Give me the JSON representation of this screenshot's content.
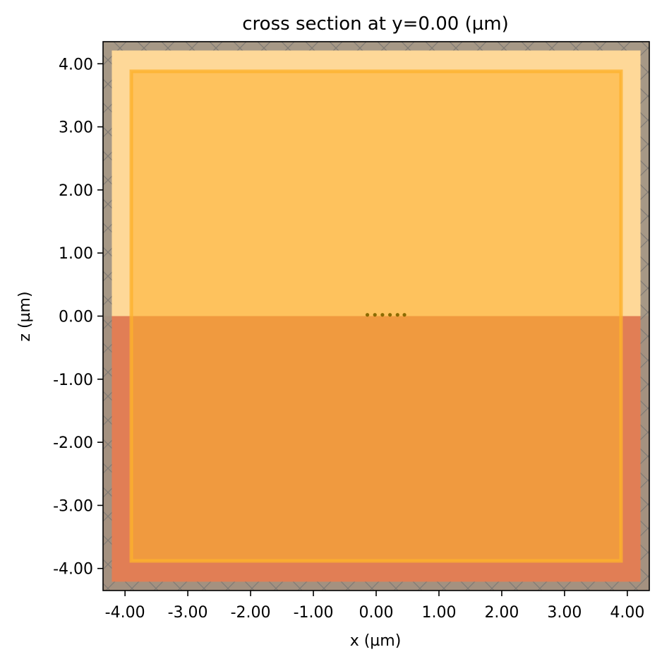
{
  "chart_data": {
    "type": "cross-section",
    "title": "cross section at y=0.00 (µm)",
    "xlabel": "x (µm)",
    "ylabel": "z (µm)",
    "xlim": [
      -4.35,
      4.35
    ],
    "ylim": [
      -4.35,
      4.35
    ],
    "x_ticks": [
      {
        "value": -4,
        "label": "-4.00"
      },
      {
        "value": -3,
        "label": "-3.00"
      },
      {
        "value": -2,
        "label": "-2.00"
      },
      {
        "value": -1,
        "label": "-1.00"
      },
      {
        "value": 0,
        "label": "0.00"
      },
      {
        "value": 1,
        "label": "1.00"
      },
      {
        "value": 2,
        "label": "2.00"
      },
      {
        "value": 3,
        "label": "3.00"
      },
      {
        "value": 4,
        "label": "4.00"
      }
    ],
    "y_ticks": [
      {
        "value": 4,
        "label": "4.00"
      },
      {
        "value": 3,
        "label": "3.00"
      },
      {
        "value": 2,
        "label": "2.00"
      },
      {
        "value": 1,
        "label": "1.00"
      },
      {
        "value": 0,
        "label": "0.00"
      },
      {
        "value": -1,
        "label": "-1.00"
      },
      {
        "value": -2,
        "label": "-2.00"
      },
      {
        "value": -3,
        "label": "-3.00"
      },
      {
        "value": -4,
        "label": "-4.00"
      }
    ],
    "regions": [
      {
        "name": "upper-medium",
        "x": [
          -4.35,
          4.35
        ],
        "z": [
          0,
          4.35
        ],
        "color": "#fed898"
      },
      {
        "name": "substrate",
        "x": [
          -4.35,
          4.35
        ],
        "z": [
          -4.35,
          0
        ],
        "color": "#e17e55"
      },
      {
        "name": "inner-box",
        "x": [
          -3.9,
          3.9
        ],
        "z": [
          -3.88,
          3.88
        ],
        "color": "#fdb12d",
        "opacity": 0.55
      },
      {
        "name": "pml-boundary",
        "thickness": 0.14,
        "color": "#9e9384"
      }
    ],
    "markers": {
      "name": "monitor-points",
      "x": [
        -0.14,
        -0.02,
        0.1,
        0.22,
        0.34,
        0.45
      ],
      "z": [
        0.02,
        0.02,
        0.02,
        0.02,
        0.02,
        0.02
      ],
      "color": "#8b6b00"
    },
    "grid": false
  }
}
